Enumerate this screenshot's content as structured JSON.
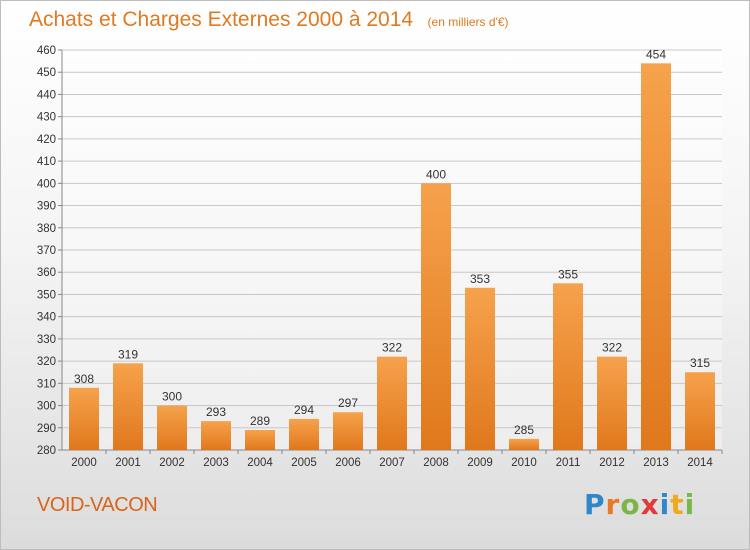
{
  "title": "Achats et Charges Externes 2000 à 2014",
  "subtitle": "(en milliers d'€)",
  "location": "VOID-VACON",
  "brand": {
    "text": "Proxiti",
    "letters": [
      {
        "ch": "P",
        "color": "#2f86c9"
      },
      {
        "ch": "r",
        "color": "#e8792a"
      },
      {
        "ch": "o",
        "color": "#7ab648"
      },
      {
        "ch": "x",
        "color": "#e03a3a"
      },
      {
        "ch": "i",
        "color": "#2f86c9"
      },
      {
        "ch": "t",
        "color": "#f0a81d"
      },
      {
        "ch": "i",
        "color": "#7ab648"
      }
    ]
  },
  "colors": {
    "bar_top": "#f6a24c",
    "bar_bottom": "#e0781c",
    "title": "#e07a20",
    "grid": "#c8c8c8"
  },
  "chart_data": {
    "type": "bar",
    "title": "Achats et Charges Externes 2000 à 2014",
    "subtitle": "(en milliers d'€)",
    "xlabel": "",
    "ylabel": "",
    "categories": [
      "2000",
      "2001",
      "2002",
      "2003",
      "2004",
      "2005",
      "2006",
      "2007",
      "2008",
      "2009",
      "2010",
      "2011",
      "2012",
      "2013",
      "2014"
    ],
    "values": [
      308,
      319,
      300,
      293,
      289,
      294,
      297,
      322,
      400,
      353,
      285,
      355,
      322,
      454,
      315
    ],
    "ylim": [
      280,
      460
    ],
    "ytick_step": 10,
    "grid": "horizontal",
    "legend": "none"
  }
}
